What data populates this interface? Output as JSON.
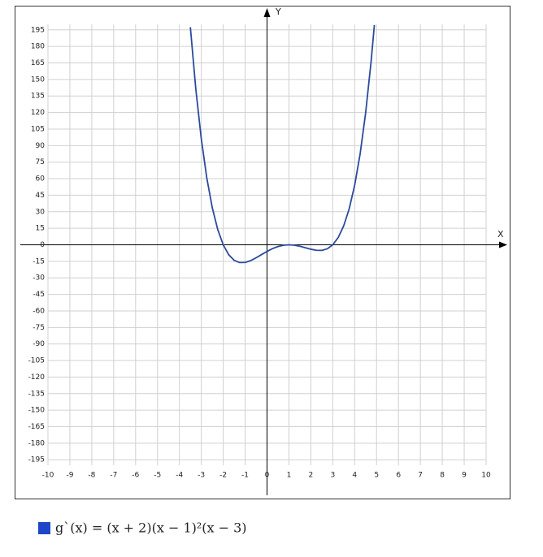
{
  "chart_data": {
    "type": "line",
    "x_label": "X",
    "y_label": "Y",
    "xlim": [
      -10,
      10
    ],
    "ylim": [
      -200,
      200
    ],
    "xticks": [
      -10,
      -9,
      -8,
      -7,
      -6,
      -5,
      -4,
      -3,
      -2,
      -1,
      0,
      1,
      2,
      3,
      4,
      5,
      6,
      7,
      8,
      9,
      10
    ],
    "yticks": [
      -195,
      -180,
      -165,
      -150,
      -135,
      -120,
      -105,
      -90,
      -75,
      -60,
      -45,
      -30,
      -15,
      0,
      15,
      30,
      45,
      60,
      75,
      90,
      105,
      120,
      135,
      150,
      165,
      180,
      195
    ],
    "grid": true,
    "series": [
      {
        "name": "g`(x) = (x + 2)(x − 1)²(x − 3)",
        "color": "#2b4a9c",
        "legend_color": "#1f45c8",
        "x": [
          -3.5,
          -3.25,
          -3,
          -2.75,
          -2.5,
          -2.25,
          -2,
          -1.75,
          -1.5,
          -1.25,
          -1,
          -0.75,
          -0.5,
          -0.25,
          0,
          0.25,
          0.5,
          0.75,
          1,
          1.25,
          1.5,
          1.75,
          2,
          2.25,
          2.5,
          2.75,
          3,
          3.25,
          3.5,
          3.75,
          4,
          4.25,
          4.5,
          4.75,
          4.9
        ],
        "values": [
          197.44,
          141.11,
          96,
          60.64,
          33.69,
          13.86,
          0,
          -8.98,
          -14.06,
          -16.14,
          -16,
          -14.36,
          -11.81,
          -8.89,
          -6,
          -3.48,
          -1.56,
          -0.39,
          0,
          -0.36,
          -1.31,
          -2.64,
          -4,
          -4.98,
          -5.06,
          -3.64,
          0,
          6.64,
          17.19,
          32.61,
          54,
          82.52,
          119.44,
          166.11,
          199.4
        ]
      }
    ]
  }
}
